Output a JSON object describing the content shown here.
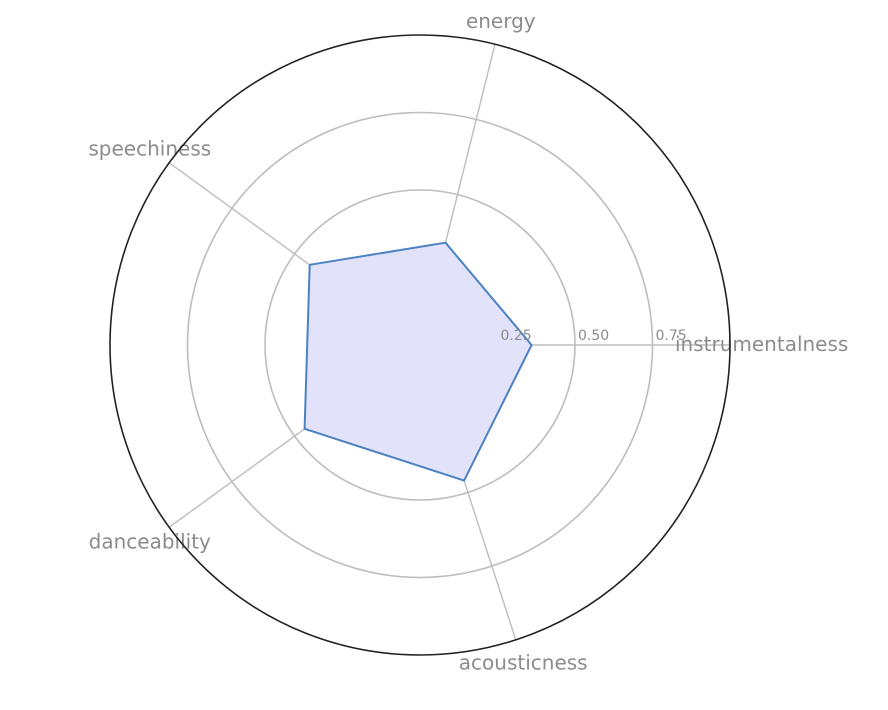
{
  "chart_data": {
    "type": "radar",
    "axes": [
      "instrumentalness",
      "energy",
      "speechiness",
      "danceability",
      "acousticness"
    ],
    "series": [
      {
        "values": [
          0.36,
          0.34,
          0.44,
          0.46,
          0.46
        ]
      }
    ],
    "rlim": [
      0,
      1
    ],
    "rticks": [
      0.25,
      0.5,
      0.75
    ],
    "rtick_labels": [
      "0.25",
      "0.50",
      "0.75"
    ],
    "grid": true,
    "colors": {
      "line": "#4a82c3",
      "fill": "#e2e2fa",
      "grid": "#bdbdbd",
      "frame": "#222222",
      "text": "#8c8c8c"
    }
  }
}
